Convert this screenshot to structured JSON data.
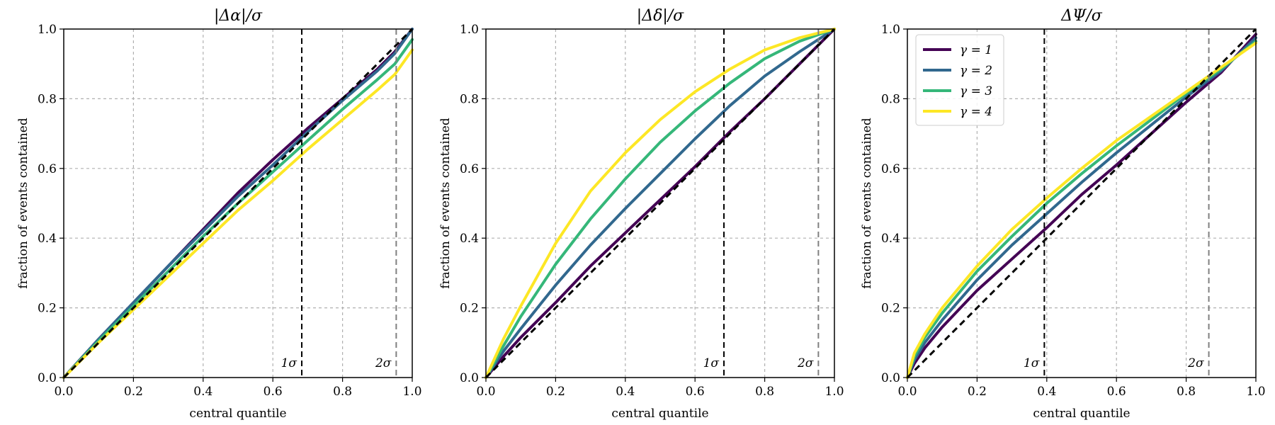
{
  "figure": {
    "background": "#ffffff"
  },
  "legend": {
    "panel": 2,
    "placement": "top-left",
    "entries": [
      {
        "label": "γ = 1",
        "color": "#440154"
      },
      {
        "label": "γ = 2",
        "color": "#31688e"
      },
      {
        "label": "γ = 3",
        "color": "#35b779"
      },
      {
        "label": "γ = 4",
        "color": "#fde725"
      }
    ]
  },
  "chart_data": [
    {
      "type": "line",
      "title": "|Δα|/σ",
      "xlabel": "central quantile",
      "ylabel": "fraction of events contained",
      "xlim": [
        0,
        1
      ],
      "ylim": [
        0,
        1
      ],
      "xticks": [
        "0.0",
        "0.2",
        "0.4",
        "0.6",
        "0.8",
        "1.0"
      ],
      "yticks": [
        "0.0",
        "0.2",
        "0.4",
        "0.6",
        "0.8",
        "1.0"
      ],
      "grid": true,
      "reference_line": {
        "x": [
          0,
          1
        ],
        "y": [
          0,
          1
        ],
        "style": "dashed",
        "color": "#000000"
      },
      "vlines": [
        {
          "x": 0.683,
          "label": "1σ",
          "color": "#000000"
        },
        {
          "x": 0.954,
          "label": "2σ",
          "color": "#808080"
        }
      ],
      "x": [
        0,
        0.1,
        0.2,
        0.3,
        0.4,
        0.5,
        0.6,
        0.7,
        0.8,
        0.9,
        0.95,
        1.0
      ],
      "series": [
        {
          "name": "γ = 1",
          "color": "#440154",
          "values": [
            0,
            0.11,
            0.215,
            0.32,
            0.425,
            0.53,
            0.625,
            0.715,
            0.8,
            0.885,
            0.935,
            1.0
          ]
        },
        {
          "name": "γ = 2",
          "color": "#31688e",
          "values": [
            0,
            0.11,
            0.215,
            0.32,
            0.42,
            0.52,
            0.61,
            0.705,
            0.795,
            0.88,
            0.93,
            1.0
          ]
        },
        {
          "name": "γ = 3",
          "color": "#35b779",
          "values": [
            0,
            0.105,
            0.205,
            0.305,
            0.405,
            0.5,
            0.59,
            0.68,
            0.77,
            0.855,
            0.9,
            0.97
          ]
        },
        {
          "name": "γ = 4",
          "color": "#fde725",
          "values": [
            0,
            0.1,
            0.195,
            0.29,
            0.385,
            0.48,
            0.565,
            0.655,
            0.74,
            0.825,
            0.87,
            0.94
          ]
        }
      ]
    },
    {
      "type": "line",
      "title": "|Δδ|/σ",
      "xlabel": "central quantile",
      "ylabel": "fraction of events contained",
      "xlim": [
        0,
        1
      ],
      "ylim": [
        0,
        1
      ],
      "xticks": [
        "0.0",
        "0.2",
        "0.4",
        "0.6",
        "0.8",
        "1.0"
      ],
      "yticks": [
        "0.0",
        "0.2",
        "0.4",
        "0.6",
        "0.8",
        "1.0"
      ],
      "grid": true,
      "reference_line": {
        "x": [
          0,
          1
        ],
        "y": [
          0,
          1
        ],
        "style": "dashed",
        "color": "#000000"
      },
      "vlines": [
        {
          "x": 0.683,
          "label": "1σ",
          "color": "#000000"
        },
        {
          "x": 0.954,
          "label": "2σ",
          "color": "#808080"
        }
      ],
      "x": [
        0,
        0.05,
        0.1,
        0.2,
        0.3,
        0.4,
        0.5,
        0.6,
        0.7,
        0.8,
        0.9,
        1.0
      ],
      "series": [
        {
          "name": "γ = 1",
          "color": "#440154",
          "values": [
            0,
            0.06,
            0.115,
            0.215,
            0.32,
            0.415,
            0.51,
            0.605,
            0.705,
            0.8,
            0.9,
            1.0
          ]
        },
        {
          "name": "γ = 2",
          "color": "#31688e",
          "values": [
            0,
            0.075,
            0.14,
            0.265,
            0.38,
            0.485,
            0.585,
            0.685,
            0.78,
            0.865,
            0.935,
            1.0
          ]
        },
        {
          "name": "γ = 3",
          "color": "#35b779",
          "values": [
            0,
            0.09,
            0.175,
            0.325,
            0.455,
            0.57,
            0.675,
            0.765,
            0.845,
            0.915,
            0.965,
            1.0
          ]
        },
        {
          "name": "γ = 4",
          "color": "#fde725",
          "values": [
            0,
            0.11,
            0.205,
            0.385,
            0.535,
            0.645,
            0.74,
            0.82,
            0.885,
            0.94,
            0.975,
            1.0
          ]
        }
      ]
    },
    {
      "type": "line",
      "title": "ΔΨ/σ",
      "xlabel": "central quantile",
      "ylabel": "fraction of events contained",
      "xlim": [
        0,
        1
      ],
      "ylim": [
        0,
        1
      ],
      "xticks": [
        "0.0",
        "0.2",
        "0.4",
        "0.6",
        "0.8",
        "1.0"
      ],
      "yticks": [
        "0.0",
        "0.2",
        "0.4",
        "0.6",
        "0.8",
        "1.0"
      ],
      "grid": true,
      "reference_line": {
        "x": [
          0,
          1
        ],
        "y": [
          0,
          1
        ],
        "style": "dashed",
        "color": "#000000"
      },
      "vlines": [
        {
          "x": 0.393,
          "label": "1σ",
          "color": "#000000"
        },
        {
          "x": 0.865,
          "label": "2σ",
          "color": "#808080"
        }
      ],
      "x": [
        0,
        0.02,
        0.05,
        0.1,
        0.2,
        0.3,
        0.4,
        0.5,
        0.6,
        0.7,
        0.8,
        0.9,
        1.0
      ],
      "series": [
        {
          "name": "γ = 1",
          "color": "#440154",
          "values": [
            0,
            0.04,
            0.085,
            0.145,
            0.25,
            0.34,
            0.43,
            0.525,
            0.61,
            0.7,
            0.79,
            0.875,
            0.985
          ]
        },
        {
          "name": "γ = 2",
          "color": "#31688e",
          "values": [
            0,
            0.05,
            0.1,
            0.165,
            0.28,
            0.38,
            0.47,
            0.56,
            0.645,
            0.725,
            0.805,
            0.88,
            0.975
          ]
        },
        {
          "name": "γ = 3",
          "color": "#35b779",
          "values": [
            0,
            0.06,
            0.115,
            0.185,
            0.305,
            0.405,
            0.5,
            0.585,
            0.665,
            0.74,
            0.815,
            0.885,
            0.965
          ]
        },
        {
          "name": "γ = 4",
          "color": "#fde725",
          "values": [
            0,
            0.07,
            0.125,
            0.2,
            0.32,
            0.425,
            0.515,
            0.6,
            0.68,
            0.75,
            0.82,
            0.89,
            0.96
          ]
        }
      ]
    }
  ]
}
